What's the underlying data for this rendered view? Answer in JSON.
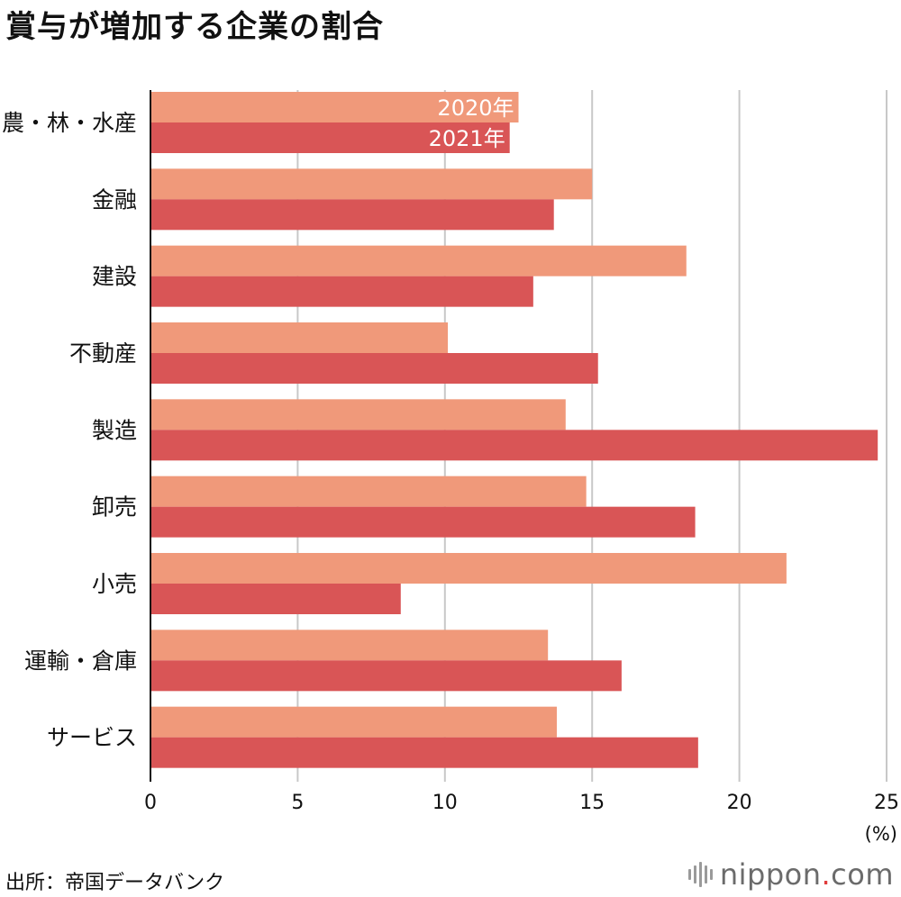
{
  "title": "賞与が増加する企業の割合",
  "source": "出所：帝国データバンク",
  "logo": {
    "name": "nippon",
    "dot": ".",
    "tld": "com"
  },
  "chart_data": {
    "type": "bar",
    "orientation": "horizontal",
    "categories": [
      "農・林・水産",
      "金融",
      "建設",
      "不動産",
      "製造",
      "卸売",
      "小売",
      "運輸・倉庫",
      "サービス"
    ],
    "series": [
      {
        "name": "2020年",
        "color": "#f0997a",
        "values": [
          12.5,
          15.0,
          18.2,
          10.1,
          14.1,
          14.8,
          21.6,
          13.5,
          13.8
        ]
      },
      {
        "name": "2021年",
        "color": "#d95556",
        "values": [
          12.2,
          13.7,
          13.0,
          15.2,
          24.7,
          18.5,
          8.5,
          16.0,
          18.6
        ]
      }
    ],
    "xlim": [
      0,
      25
    ],
    "xticks": [
      0,
      5,
      10,
      15,
      20,
      25
    ],
    "xunit": "(%)",
    "grid": true,
    "legend": "inside-first-bars"
  }
}
